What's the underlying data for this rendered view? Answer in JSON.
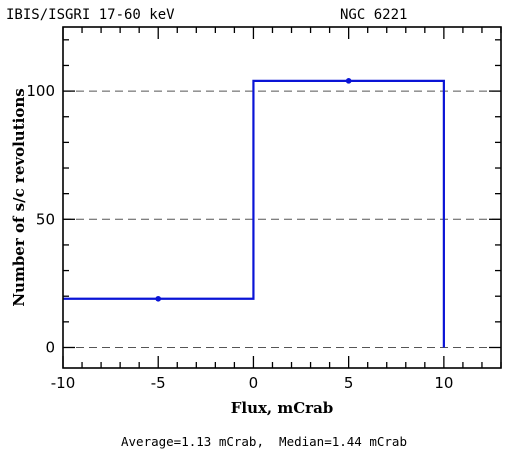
{
  "header": {
    "instrument": "IBIS/ISGRI 17-60 keV",
    "source": "NGC 6221"
  },
  "footer": {
    "summary": "Average=1.13 mCrab,  Median=1.44 mCrab"
  },
  "chart_data": {
    "type": "histogram",
    "xlabel": "Flux, mCrab",
    "ylabel": "Number of s/c revolutions",
    "xlim": [
      -10,
      13
    ],
    "ylim": [
      -8,
      125
    ],
    "xticks": [
      -10,
      -5,
      0,
      5,
      10
    ],
    "yticks": [
      0,
      50,
      100
    ],
    "grid": "horizontal dashed at y ticks",
    "colors": {
      "series": "#0a14d6"
    },
    "bins": [
      {
        "x0": -10,
        "x1": 0,
        "center": -5,
        "value": 19
      },
      {
        "x0": 0,
        "x1": 10,
        "center": 5,
        "value": 104
      }
    ],
    "drop_to_zero_at": 10
  }
}
